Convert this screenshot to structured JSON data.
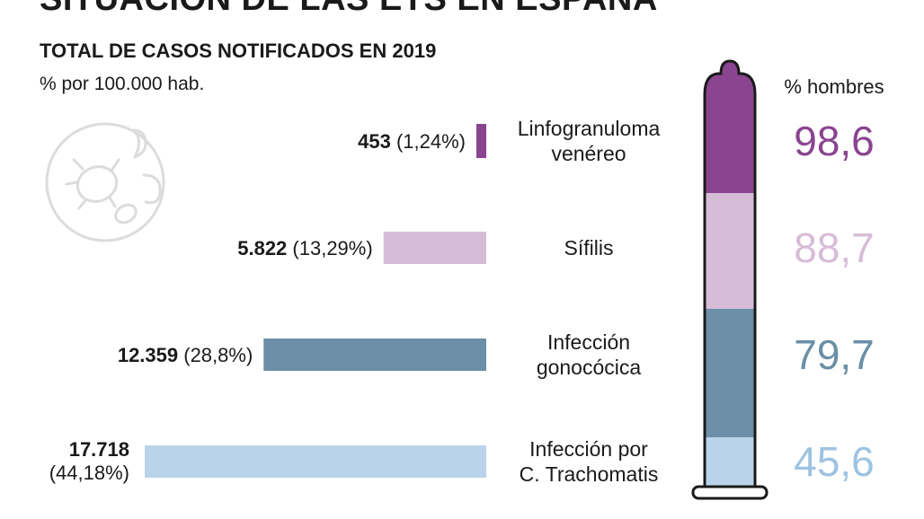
{
  "title": "SITUACIÓN DE LAS ETS EN ESPAÑA",
  "subtitle": "TOTAL DE CASOS NOTIFICADOS EN 2019",
  "units": "% por 100.000 hab.",
  "icon": "bacteria-icon",
  "chart_data": {
    "type": "bar",
    "orientation": "horizontal",
    "categories": [
      {
        "name_lines": [
          "Linfogranuloma",
          "venéreo"
        ],
        "cases": 453,
        "cases_label": "453",
        "pct": 1.24,
        "pct_label": "(1,24%)",
        "men_pct": 98.6,
        "men_label": "98,6",
        "color": "#8a4490"
      },
      {
        "name_lines": [
          "Sífilis"
        ],
        "cases": 5822,
        "cases_label": "5.822",
        "pct": 13.29,
        "pct_label": "(13,29%)",
        "men_pct": 88.7,
        "men_label": "88,7",
        "color": "#d7bcd8"
      },
      {
        "name_lines": [
          "Infección",
          "gonocócica"
        ],
        "cases": 12359,
        "cases_label": "12.359",
        "pct": 28.8,
        "pct_label": "(28,8%)",
        "men_pct": 79.7,
        "men_label": "79,7",
        "color": "#6a8fa6"
      },
      {
        "name_lines": [
          "Infección por",
          "C. Trachomatis"
        ],
        "cases": 17718,
        "cases_label": "17.718",
        "pct": 44.18,
        "pct_label": "(44,18%)",
        "men_pct": 45.6,
        "men_label": "45,6",
        "color": "#b9d4ea"
      }
    ],
    "men_title": "% hombres",
    "xlabel": "",
    "ylabel": ""
  }
}
